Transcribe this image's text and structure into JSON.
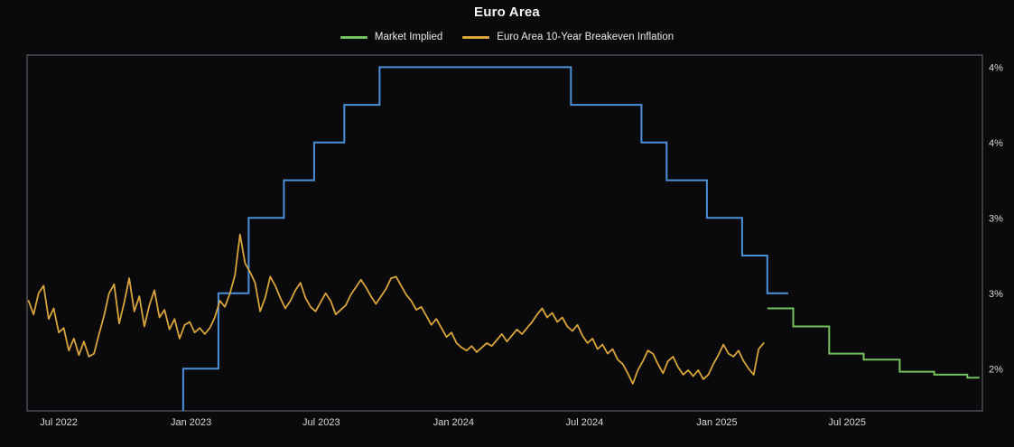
{
  "header": {
    "title": "Euro Area"
  },
  "legend": [
    {
      "id": "market-implied",
      "label": "Market Implied",
      "color": "#74c15f"
    },
    {
      "id": "breakeven-10y",
      "label": "Euro Area 10-Year Breakeven Inflation",
      "color": "#d9a43c"
    }
  ],
  "colors": {
    "background": "#0a0a0c",
    "plot_border": "#6a6e73",
    "axis_label": "#d9d9d7",
    "title": "#f5f5f5",
    "policy_blue": "#4b90d9",
    "breakeven_orange": "#d9a43c",
    "implied_green": "#74c15f"
  },
  "chart_data": {
    "type": "line",
    "title": "Euro Area",
    "grid": false,
    "legend_position": "top-center",
    "x_axis": {
      "range": [
        "2022-05-18",
        "2026-01-05"
      ],
      "ticks": [
        {
          "date": "2022-07-01",
          "label": "Jul 2022"
        },
        {
          "date": "2023-01-01",
          "label": "Jan 2023"
        },
        {
          "date": "2023-07-01",
          "label": "Jul 2023"
        },
        {
          "date": "2024-01-01",
          "label": "Jan 2024"
        },
        {
          "date": "2024-07-01",
          "label": "Jul 2024"
        },
        {
          "date": "2025-01-01",
          "label": "Jan 2025"
        },
        {
          "date": "2025-07-01",
          "label": "Jul 2025"
        }
      ]
    },
    "y_axis": {
      "side": "right",
      "unit": "%",
      "range": [
        1.72,
        4.08
      ],
      "ticks": [
        {
          "value": 4.0,
          "label": "4%"
        },
        {
          "value": 3.5,
          "label": "4%"
        },
        {
          "value": 3.0,
          "label": "3%"
        },
        {
          "value": 2.5,
          "label": "3%"
        },
        {
          "value": 2.0,
          "label": "2%"
        }
      ]
    },
    "series": [
      {
        "id": "policy-rate",
        "legend_label": null,
        "color": "#4b90d9",
        "style": "step",
        "stroke_width": 2,
        "start": [
          "2022-12-21",
          1.72
        ],
        "steps": [
          [
            "2022-12-21",
            2.0
          ],
          [
            "2023-02-08",
            2.5
          ],
          [
            "2023-03-22",
            3.0
          ],
          [
            "2023-05-10",
            3.25
          ],
          [
            "2023-06-21",
            3.5
          ],
          [
            "2023-08-02",
            3.75
          ],
          [
            "2023-09-20",
            4.0
          ],
          [
            "2024-06-12",
            3.75
          ],
          [
            "2024-09-18",
            3.5
          ],
          [
            "2024-10-23",
            3.25
          ],
          [
            "2024-12-18",
            3.0
          ],
          [
            "2025-02-05",
            2.75
          ],
          [
            "2025-03-12",
            2.5
          ]
        ],
        "end_date": "2025-04-10"
      },
      {
        "id": "breakeven-10y",
        "legend_label": "Euro Area 10-Year Breakeven Inflation",
        "color": "#d9a43c",
        "style": "line",
        "stroke_width": 1.8,
        "start_date": "2022-05-20",
        "interval_days": 7,
        "values": [
          2.45,
          2.36,
          2.5,
          2.55,
          2.33,
          2.4,
          2.24,
          2.27,
          2.12,
          2.2,
          2.09,
          2.18,
          2.08,
          2.1,
          2.23,
          2.35,
          2.5,
          2.56,
          2.3,
          2.44,
          2.6,
          2.38,
          2.48,
          2.28,
          2.42,
          2.52,
          2.34,
          2.39,
          2.26,
          2.33,
          2.2,
          2.29,
          2.31,
          2.24,
          2.27,
          2.23,
          2.27,
          2.34,
          2.45,
          2.41,
          2.5,
          2.62,
          2.89,
          2.7,
          2.64,
          2.57,
          2.38,
          2.47,
          2.61,
          2.55,
          2.47,
          2.4,
          2.45,
          2.52,
          2.57,
          2.47,
          2.41,
          2.38,
          2.44,
          2.5,
          2.45,
          2.36,
          2.39,
          2.42,
          2.49,
          2.54,
          2.59,
          2.54,
          2.48,
          2.43,
          2.48,
          2.53,
          2.6,
          2.61,
          2.55,
          2.49,
          2.45,
          2.39,
          2.41,
          2.35,
          2.29,
          2.33,
          2.27,
          2.21,
          2.24,
          2.17,
          2.14,
          2.12,
          2.15,
          2.11,
          2.14,
          2.17,
          2.15,
          2.19,
          2.23,
          2.18,
          2.22,
          2.26,
          2.23,
          2.27,
          2.31,
          2.36,
          2.4,
          2.34,
          2.37,
          2.31,
          2.34,
          2.28,
          2.25,
          2.29,
          2.22,
          2.17,
          2.2,
          2.13,
          2.16,
          2.1,
          2.13,
          2.06,
          2.03,
          1.97,
          1.9,
          1.99,
          2.05,
          2.12,
          2.1,
          2.03,
          1.97,
          2.05,
          2.08,
          2.01,
          1.96,
          1.99,
          1.95,
          1.99,
          1.93,
          1.96,
          2.03,
          2.09,
          2.16,
          2.1,
          2.08,
          2.12,
          2.05,
          2.0,
          1.96,
          2.13,
          2.17
        ]
      },
      {
        "id": "market-implied",
        "legend_label": "Market Implied",
        "color": "#74c15f",
        "style": "step",
        "stroke_width": 2,
        "start": [
          "2025-03-12",
          2.4
        ],
        "steps": [
          [
            "2025-04-17",
            2.28
          ],
          [
            "2025-06-06",
            2.1
          ],
          [
            "2025-07-24",
            2.06
          ],
          [
            "2025-09-12",
            1.98
          ],
          [
            "2025-10-30",
            1.96
          ],
          [
            "2025-12-15",
            1.94
          ]
        ],
        "end_date": "2026-01-01"
      }
    ]
  }
}
